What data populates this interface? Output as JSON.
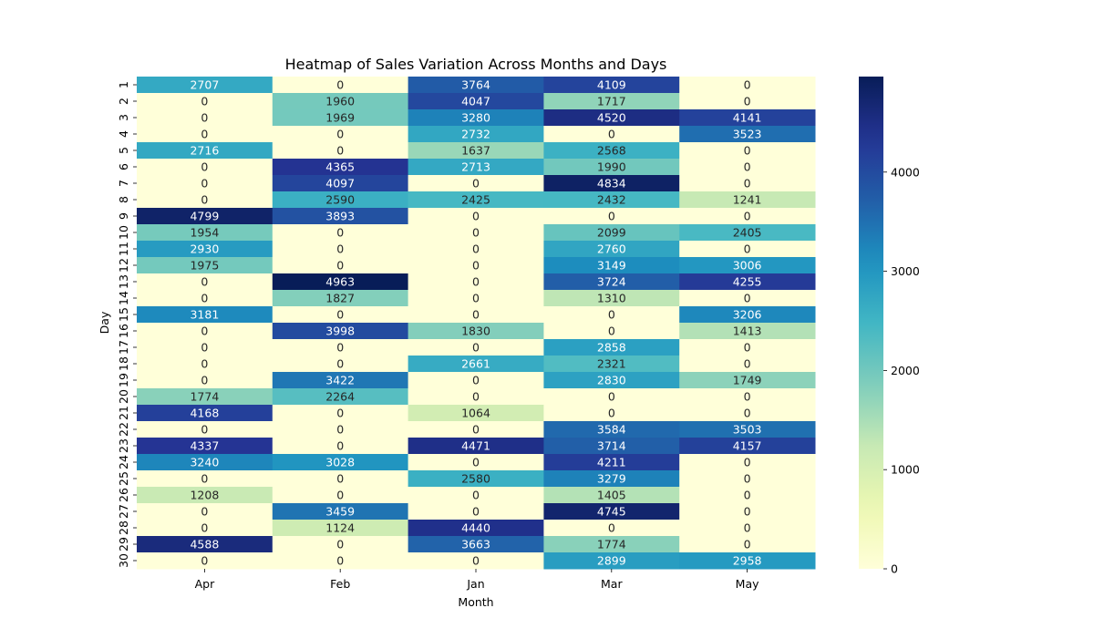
{
  "chart_data": {
    "type": "heatmap",
    "title": "Heatmap of Sales Variation Across Months and Days",
    "xlabel": "Month",
    "ylabel": "Day",
    "x": [
      "Apr",
      "Feb",
      "Jan",
      "Mar",
      "May"
    ],
    "y": [
      "1",
      "2",
      "3",
      "4",
      "5",
      "6",
      "7",
      "8",
      "9",
      "10",
      "11",
      "12",
      "13",
      "14",
      "15",
      "16",
      "17",
      "18",
      "19",
      "20",
      "21",
      "22",
      "23",
      "24",
      "25",
      "26",
      "27",
      "28",
      "29",
      "30"
    ],
    "values": [
      [
        2707,
        0,
        3764,
        4109,
        0
      ],
      [
        0,
        1960,
        4047,
        1717,
        0
      ],
      [
        0,
        1969,
        3280,
        4520,
        4141
      ],
      [
        0,
        0,
        2732,
        0,
        3523
      ],
      [
        2716,
        0,
        1637,
        2568,
        0
      ],
      [
        0,
        4365,
        2713,
        1990,
        0
      ],
      [
        0,
        4097,
        0,
        4834,
        0
      ],
      [
        0,
        2590,
        2425,
        2432,
        1241
      ],
      [
        4799,
        3893,
        0,
        0,
        0
      ],
      [
        1954,
        0,
        0,
        2099,
        2405
      ],
      [
        2930,
        0,
        0,
        2760,
        0
      ],
      [
        1975,
        0,
        0,
        3149,
        3006
      ],
      [
        0,
        4963,
        0,
        3724,
        4255
      ],
      [
        0,
        1827,
        0,
        1310,
        0
      ],
      [
        3181,
        0,
        0,
        0,
        3206
      ],
      [
        0,
        3998,
        1830,
        0,
        1413
      ],
      [
        0,
        0,
        0,
        2858,
        0
      ],
      [
        0,
        0,
        2661,
        2321,
        0
      ],
      [
        0,
        3422,
        0,
        2830,
        1749
      ],
      [
        1774,
        2264,
        0,
        0,
        0
      ],
      [
        4168,
        0,
        1064,
        0,
        0
      ],
      [
        0,
        0,
        0,
        3584,
        3503
      ],
      [
        4337,
        0,
        4471,
        3714,
        4157
      ],
      [
        3240,
        3028,
        0,
        4211,
        0
      ],
      [
        0,
        0,
        2580,
        3279,
        0
      ],
      [
        1208,
        0,
        0,
        1405,
        0
      ],
      [
        0,
        3459,
        0,
        4745,
        0
      ],
      [
        0,
        1124,
        4440,
        0,
        0
      ],
      [
        4588,
        0,
        3663,
        1774,
        0
      ],
      [
        0,
        0,
        0,
        2899,
        2958
      ]
    ],
    "colormap": "YlGnBu",
    "vmin": 0,
    "vmax": 4963,
    "colorbar_ticks": [
      0,
      1000,
      2000,
      3000,
      4000
    ],
    "annotated": true,
    "grid": false
  }
}
